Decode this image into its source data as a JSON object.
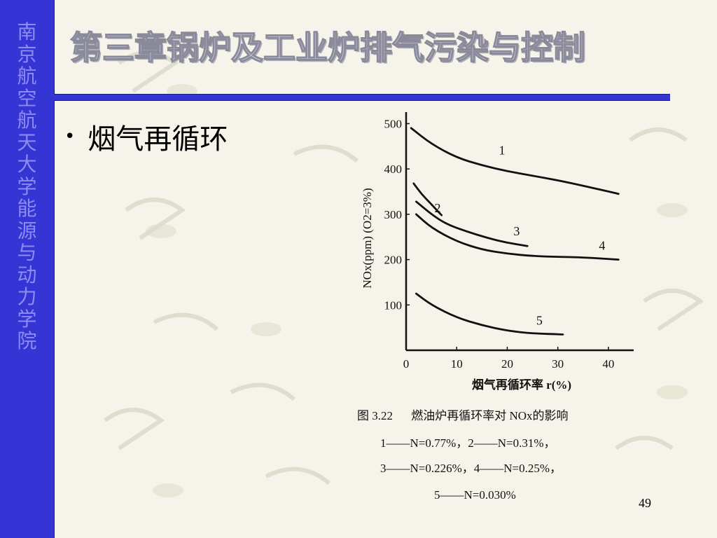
{
  "sidebar": {
    "text": [
      "南",
      "京",
      "航",
      "空",
      "航",
      "天",
      "大",
      "学",
      "能",
      "源",
      "与",
      "动",
      "力",
      "学",
      "院"
    ]
  },
  "slide": {
    "title": "第三章锅炉及工业炉排气污染与控制",
    "bullet": "烟气再循环",
    "page_number": "49"
  },
  "colors": {
    "sidebar": "#3535d6",
    "sidebar_text": "#8c8cf0",
    "background": "#f6f4ea",
    "title_fill": "#dcdcec"
  },
  "chart_data": {
    "type": "line",
    "xlabel": "烟气再循环率 r(%)",
    "ylabel": "NOx(ppm)  (O2=3%)",
    "x_ticks": [
      0,
      10,
      20,
      30,
      40
    ],
    "y_ticks": [
      100,
      200,
      300,
      400,
      500
    ],
    "xlim": [
      0,
      45
    ],
    "ylim": [
      0,
      510
    ],
    "series": [
      {
        "name": "1",
        "x": [
          1,
          5,
          10,
          15,
          20,
          25,
          30,
          35,
          42
        ],
        "y": [
          490,
          455,
          425,
          408,
          395,
          385,
          375,
          363,
          345
        ]
      },
      {
        "name": "2",
        "x": [
          1.5,
          3,
          5,
          7
        ],
        "y": [
          368,
          345,
          322,
          298
        ]
      },
      {
        "name": "3",
        "x": [
          2,
          5,
          8,
          12,
          16,
          20,
          24
        ],
        "y": [
          328,
          300,
          278,
          262,
          248,
          237,
          230
        ]
      },
      {
        "name": "4",
        "x": [
          2,
          5,
          10,
          15,
          20,
          25,
          30,
          35,
          42
        ],
        "y": [
          300,
          270,
          240,
          222,
          213,
          208,
          206,
          205,
          200
        ]
      },
      {
        "name": "5",
        "x": [
          2,
          5,
          10,
          15,
          20,
          25,
          31
        ],
        "y": [
          125,
          100,
          72,
          55,
          43,
          37,
          35
        ]
      }
    ],
    "caption": {
      "figure": "图 3.22",
      "title": "燃油炉再循环率对 NOx的影响",
      "line1": "1——N=0.77%，2——N=0.31%，",
      "line2": "3——N=0.226%，4——N=0.25%，",
      "line3": "5——N=0.030%"
    }
  }
}
